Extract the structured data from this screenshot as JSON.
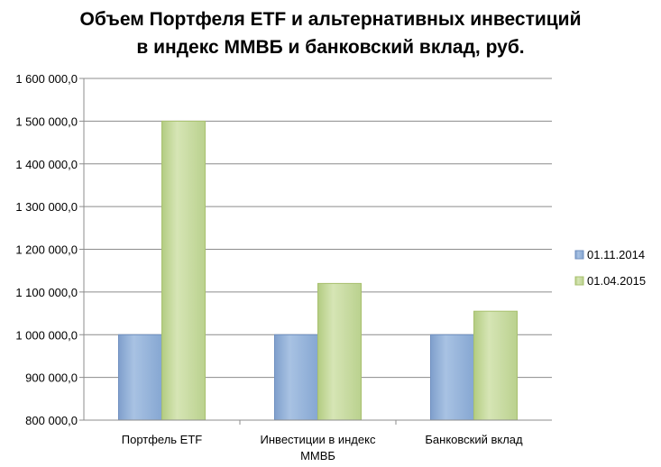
{
  "chart_data": {
    "type": "bar",
    "title_lines": [
      "Объем Портфеля ETF и альтернативных инвестиций",
      "в индекс ММВБ и банковский вклад, руб."
    ],
    "categories": [
      [
        "Портфель ETF"
      ],
      [
        "Инвестиции в индекс",
        "ММВБ"
      ],
      [
        "Банковский вклад"
      ]
    ],
    "series": [
      {
        "name": "01.11.2014",
        "values": [
          1000000,
          1000000,
          1000000
        ],
        "color": "#95b3d7"
      },
      {
        "name": "01.04.2015",
        "values": [
          1500000,
          1120000,
          1055000
        ],
        "color": "#c3d69b"
      }
    ],
    "ylim": [
      800000,
      1600000
    ],
    "ytick_labels": [
      "800 000,0",
      "900 000,0",
      "1 000 000,0",
      "1 100 000,0",
      "1 200 000,0",
      "1 300 000,0",
      "1 400 000,0",
      "1 500 000,0",
      "1 600 000,0"
    ],
    "grid": true,
    "legend_position": "right"
  }
}
